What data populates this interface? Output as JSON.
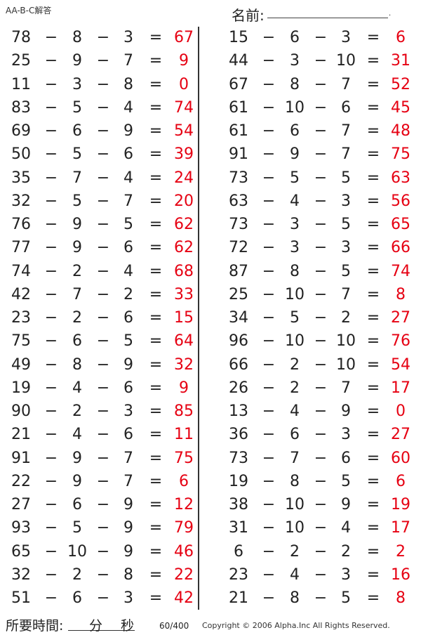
{
  "header": {
    "title": "AA-B-C解答",
    "name_label": "名前:",
    "name_end": "."
  },
  "operator": "−",
  "equals": "=",
  "columns": [
    [
      [
        78,
        8,
        3,
        67
      ],
      [
        25,
        9,
        7,
        9
      ],
      [
        11,
        3,
        8,
        0
      ],
      [
        83,
        5,
        4,
        74
      ],
      [
        69,
        6,
        9,
        54
      ],
      [
        50,
        5,
        6,
        39
      ],
      [
        35,
        7,
        4,
        24
      ],
      [
        32,
        5,
        7,
        20
      ],
      [
        76,
        9,
        5,
        62
      ],
      [
        77,
        9,
        6,
        62
      ],
      [
        74,
        2,
        4,
        68
      ],
      [
        42,
        7,
        2,
        33
      ],
      [
        23,
        2,
        6,
        15
      ],
      [
        75,
        6,
        5,
        64
      ],
      [
        49,
        8,
        9,
        32
      ],
      [
        19,
        4,
        6,
        9
      ],
      [
        90,
        2,
        3,
        85
      ],
      [
        21,
        4,
        6,
        11
      ],
      [
        91,
        9,
        7,
        75
      ],
      [
        22,
        9,
        7,
        6
      ],
      [
        27,
        6,
        9,
        12
      ],
      [
        93,
        5,
        9,
        79
      ],
      [
        65,
        10,
        9,
        46
      ],
      [
        32,
        2,
        8,
        22
      ],
      [
        51,
        6,
        3,
        42
      ]
    ],
    [
      [
        15,
        6,
        3,
        6
      ],
      [
        44,
        3,
        10,
        31
      ],
      [
        67,
        8,
        7,
        52
      ],
      [
        61,
        10,
        6,
        45
      ],
      [
        61,
        6,
        7,
        48
      ],
      [
        91,
        9,
        7,
        75
      ],
      [
        73,
        5,
        5,
        63
      ],
      [
        63,
        4,
        3,
        56
      ],
      [
        73,
        3,
        5,
        65
      ],
      [
        72,
        3,
        3,
        66
      ],
      [
        87,
        8,
        5,
        74
      ],
      [
        25,
        10,
        7,
        8
      ],
      [
        34,
        5,
        2,
        27
      ],
      [
        96,
        10,
        10,
        76
      ],
      [
        66,
        2,
        10,
        54
      ],
      [
        26,
        2,
        7,
        17
      ],
      [
        13,
        4,
        9,
        0
      ],
      [
        36,
        6,
        3,
        27
      ],
      [
        73,
        7,
        6,
        60
      ],
      [
        19,
        8,
        5,
        6
      ],
      [
        38,
        10,
        9,
        19
      ],
      [
        31,
        10,
        4,
        17
      ],
      [
        6,
        2,
        2,
        2
      ],
      [
        23,
        4,
        3,
        16
      ],
      [
        21,
        8,
        5,
        8
      ]
    ]
  ],
  "footer": {
    "time_label": "所要時間:",
    "minutes": "分",
    "seconds": "秒",
    "page": "60/400",
    "copyright": "Copyright © 2006 Alpha.Inc All Rights Reserved."
  },
  "colors": {
    "answer": "#e60012",
    "text": "#222222"
  }
}
